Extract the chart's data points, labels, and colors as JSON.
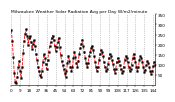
{
  "title": "Milwaukee Weather Solar Radiation Avg per Day W/m2/minute",
  "line_color": "#ff0000",
  "line_style": "--",
  "line_width": 0.6,
  "marker": "s",
  "marker_size": 1.2,
  "marker_color": "#000000",
  "background_color": "#ffffff",
  "grid_color": "#888888",
  "ylim": [
    0,
    350
  ],
  "yticks": [
    50,
    100,
    150,
    200,
    250,
    300,
    350
  ],
  "values": [
    270,
    220,
    140,
    60,
    15,
    10,
    40,
    90,
    120,
    70,
    35,
    90,
    160,
    220,
    255,
    275,
    245,
    200,
    235,
    245,
    215,
    180,
    205,
    225,
    195,
    155,
    125,
    90,
    70,
    50,
    40,
    70,
    115,
    155,
    135,
    105,
    80,
    125,
    165,
    195,
    215,
    235,
    245,
    225,
    195,
    170,
    190,
    215,
    235,
    190,
    150,
    120,
    100,
    80,
    60,
    40,
    70,
    110,
    145,
    120,
    90,
    70,
    90,
    135,
    165,
    140,
    110,
    90,
    120,
    155,
    185,
    205,
    225,
    195,
    165,
    135,
    110,
    90,
    110,
    145,
    165,
    185,
    195,
    175,
    145,
    115,
    90,
    70,
    90,
    125,
    155,
    175,
    165,
    145,
    115,
    90,
    70,
    80,
    105,
    135,
    155,
    145,
    125,
    105,
    80,
    60,
    80,
    115,
    135,
    120,
    100,
    80,
    60,
    70,
    90,
    125,
    145,
    135,
    115,
    90,
    70,
    80,
    100,
    135,
    155,
    135,
    115,
    90,
    70,
    90,
    125,
    145,
    135,
    115,
    90,
    65,
    75,
    100,
    120,
    110,
    90,
    70,
    55,
    70,
    95,
    115,
    100
  ],
  "n_xticks": 15,
  "font_size": 3.0,
  "title_font_size": 3.2
}
